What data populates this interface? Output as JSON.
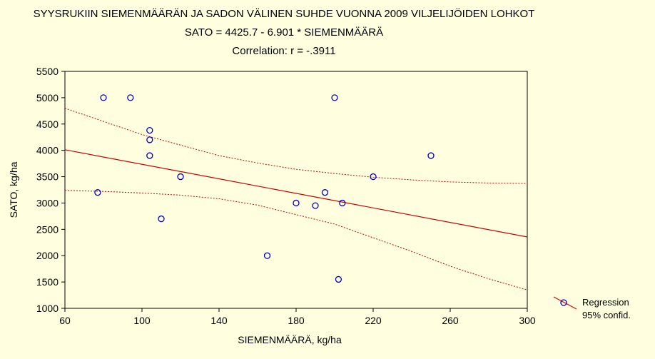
{
  "chart_data": {
    "type": "scatter",
    "title": "SYYSRUKIIN  SIEMENMÄÄRÄN JA SADON VÄLINEN SUHDE VUONNA 2009 VILJELIJÖIDEN LOHKOT",
    "subtitle": "SATO = 4425.7 - 6.901 * SIEMENMÄÄRÄ",
    "correlation_text": "Correlation: r = -.3911",
    "xlabel": "SIEMENMÄÄRÄ, kg/ha",
    "ylabel": "SATO, kg/ha",
    "xlim": [
      60,
      300
    ],
    "ylim": [
      1000,
      5500
    ],
    "x_ticks": [
      60,
      100,
      140,
      180,
      220,
      260,
      300
    ],
    "y_ticks": [
      1000,
      1500,
      2000,
      2500,
      3000,
      3500,
      4000,
      4500,
      5000,
      5500
    ],
    "grid": false,
    "legend_position": "right",
    "legend": {
      "regression_label": "Regression",
      "confidence_label": "95% confid."
    },
    "points": [
      {
        "x": 77,
        "y": 3200
      },
      {
        "x": 80,
        "y": 5000
      },
      {
        "x": 94,
        "y": 5000
      },
      {
        "x": 104,
        "y": 4380
      },
      {
        "x": 104,
        "y": 4200
      },
      {
        "x": 104,
        "y": 3900
      },
      {
        "x": 110,
        "y": 2700
      },
      {
        "x": 120,
        "y": 3500
      },
      {
        "x": 165,
        "y": 2000
      },
      {
        "x": 180,
        "y": 3000
      },
      {
        "x": 190,
        "y": 2950
      },
      {
        "x": 195,
        "y": 3200
      },
      {
        "x": 200,
        "y": 5000
      },
      {
        "x": 202,
        "y": 1550
      },
      {
        "x": 204,
        "y": 3000
      },
      {
        "x": 220,
        "y": 3500
      },
      {
        "x": 250,
        "y": 3900
      }
    ],
    "regression": {
      "intercept": 4425.7,
      "slope": -6.901
    },
    "confidence_upper": [
      {
        "x": 60,
        "y": 4800
      },
      {
        "x": 80,
        "y": 4550
      },
      {
        "x": 100,
        "y": 4300
      },
      {
        "x": 120,
        "y": 4100
      },
      {
        "x": 140,
        "y": 3900
      },
      {
        "x": 160,
        "y": 3760
      },
      {
        "x": 180,
        "y": 3640
      },
      {
        "x": 200,
        "y": 3560
      },
      {
        "x": 220,
        "y": 3490
      },
      {
        "x": 240,
        "y": 3440
      },
      {
        "x": 260,
        "y": 3400
      },
      {
        "x": 280,
        "y": 3380
      },
      {
        "x": 300,
        "y": 3370
      }
    ],
    "confidence_lower": [
      {
        "x": 60,
        "y": 3240
      },
      {
        "x": 80,
        "y": 3220
      },
      {
        "x": 100,
        "y": 3190
      },
      {
        "x": 120,
        "y": 3150
      },
      {
        "x": 140,
        "y": 3080
      },
      {
        "x": 160,
        "y": 2960
      },
      {
        "x": 180,
        "y": 2780
      },
      {
        "x": 200,
        "y": 2600
      },
      {
        "x": 220,
        "y": 2340
      },
      {
        "x": 240,
        "y": 2080
      },
      {
        "x": 260,
        "y": 1800
      },
      {
        "x": 280,
        "y": 1560
      },
      {
        "x": 300,
        "y": 1350
      }
    ],
    "colors": {
      "background": "#ffffe0",
      "marker": "#0000cc",
      "regression_line": "#cc0000",
      "axis": "#000000"
    }
  }
}
